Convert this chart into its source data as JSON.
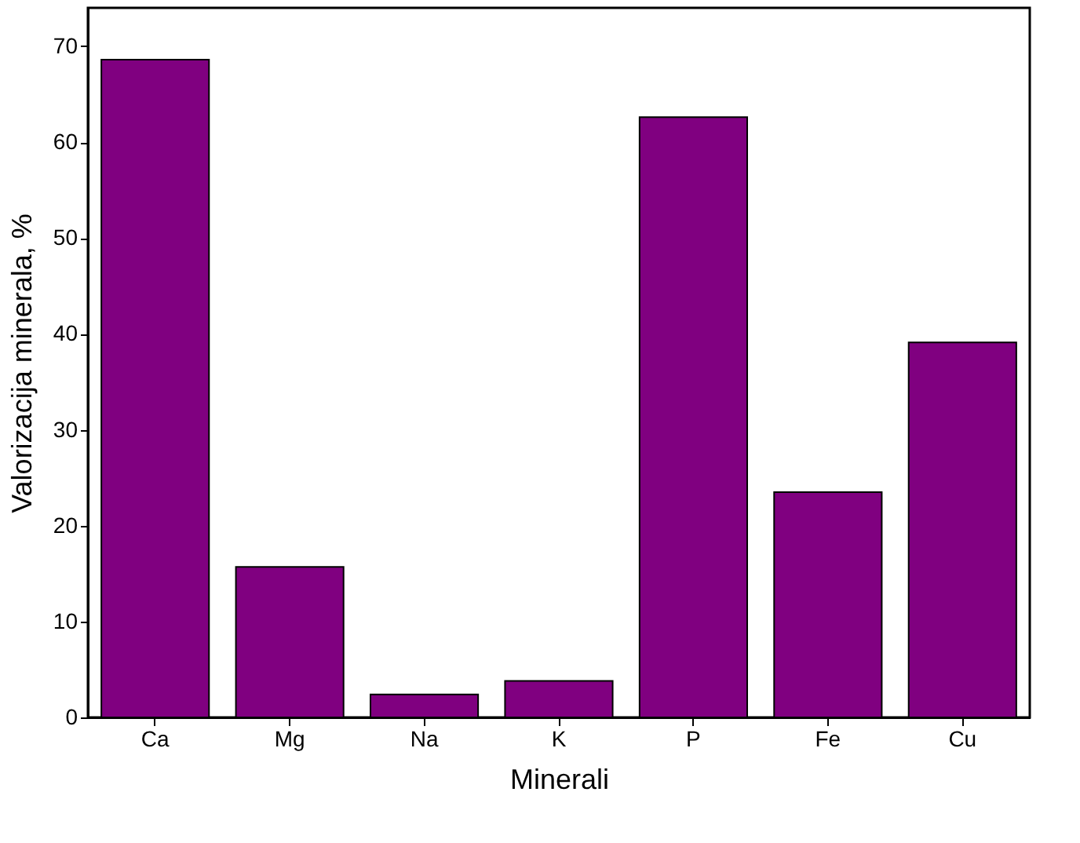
{
  "chart_data": {
    "type": "bar",
    "xlabel": "Minerali",
    "ylabel": "Valorizacija minerala, %",
    "categories": [
      "Ca",
      "Mg",
      "Na",
      "K",
      "P",
      "Fe",
      "Cu"
    ],
    "values": [
      68.6,
      15.7,
      2.4,
      3.8,
      62.6,
      23.5,
      39.1
    ],
    "color": "#800080",
    "ylim": [
      0,
      74
    ],
    "yticks": [
      0,
      10,
      20,
      30,
      40,
      50,
      60,
      70
    ],
    "grid": false
  }
}
